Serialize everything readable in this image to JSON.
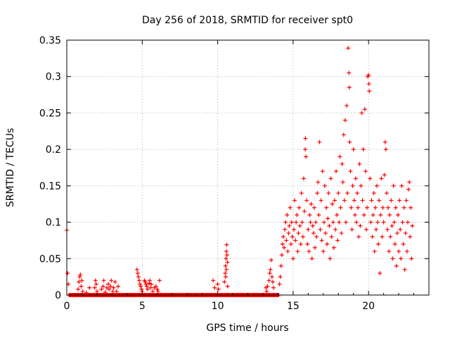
{
  "chart_data": {
    "type": "scatter",
    "title": "Day 256 of 2018, SRMTID for receiver spt0",
    "xlabel": "GPS time / hours",
    "ylabel": "SRMTID / TECUs",
    "xlim": [
      0,
      24
    ],
    "ylim": [
      0,
      0.35
    ],
    "grid": true,
    "legend": "none",
    "colors": {
      "marker": "#ff0000",
      "grid": "#b0b0b0",
      "axis": "#000000"
    },
    "x_ticks": [
      {
        "value": 0,
        "label": "0"
      },
      {
        "value": 5,
        "label": "5"
      },
      {
        "value": 10,
        "label": "10"
      },
      {
        "value": 15,
        "label": "15"
      },
      {
        "value": 20,
        "label": "20"
      }
    ],
    "y_ticks": [
      {
        "value": 0,
        "label": "0"
      },
      {
        "value": 0.05,
        "label": "0.05"
      },
      {
        "value": 0.1,
        "label": "0.1"
      },
      {
        "value": 0.15,
        "label": "0.15"
      },
      {
        "value": 0.2,
        "label": "0.2"
      },
      {
        "value": 0.25,
        "label": "0.25"
      },
      {
        "value": 0.3,
        "label": "0.3"
      },
      {
        "value": 0.35,
        "label": "0.35"
      }
    ],
    "series": [
      {
        "name": "SRMTID",
        "marker": "+",
        "points": [
          [
            0.0,
            0.089
          ],
          [
            0.05,
            0.03
          ],
          [
            0.1,
            0.015
          ],
          [
            0.15,
            0.0
          ],
          [
            0.4,
            0.0
          ],
          [
            0.6,
            0.0
          ],
          [
            0.75,
            0.008
          ],
          [
            0.8,
            0.018
          ],
          [
            0.85,
            0.025
          ],
          [
            0.9,
            0.028
          ],
          [
            0.95,
            0.012
          ],
          [
            1.0,
            0.02
          ],
          [
            1.05,
            0.005
          ],
          [
            1.1,
            0.0
          ],
          [
            1.3,
            0.003
          ],
          [
            1.5,
            0.01
          ],
          [
            1.6,
            0.0
          ],
          [
            1.85,
            0.01
          ],
          [
            1.9,
            0.02
          ],
          [
            1.95,
            0.015
          ],
          [
            2.0,
            0.005
          ],
          [
            2.2,
            0.0
          ],
          [
            2.3,
            0.008
          ],
          [
            2.4,
            0.012
          ],
          [
            2.45,
            0.02
          ],
          [
            2.55,
            0.004
          ],
          [
            2.65,
            0.01
          ],
          [
            2.75,
            0.015
          ],
          [
            2.8,
            0.008
          ],
          [
            2.9,
            0.012
          ],
          [
            2.95,
            0.02
          ],
          [
            3.05,
            0.005
          ],
          [
            3.1,
            0.01
          ],
          [
            3.2,
            0.018
          ],
          [
            3.3,
            0.005
          ],
          [
            3.4,
            0.012
          ],
          [
            3.5,
            0.0
          ],
          [
            3.7,
            0.0
          ],
          [
            4.0,
            0.0
          ],
          [
            4.3,
            0.0
          ],
          [
            4.65,
            0.035
          ],
          [
            4.7,
            0.03
          ],
          [
            4.75,
            0.025
          ],
          [
            4.8,
            0.02
          ],
          [
            4.85,
            0.015
          ],
          [
            4.9,
            0.012
          ],
          [
            4.95,
            0.008
          ],
          [
            5.0,
            0.005
          ],
          [
            5.15,
            0.02
          ],
          [
            5.2,
            0.018
          ],
          [
            5.25,
            0.015
          ],
          [
            5.3,
            0.012
          ],
          [
            5.35,
            0.008
          ],
          [
            5.45,
            0.016
          ],
          [
            5.5,
            0.02
          ],
          [
            5.55,
            0.01
          ],
          [
            5.6,
            0.015
          ],
          [
            5.7,
            0.005
          ],
          [
            5.8,
            0.01
          ],
          [
            5.9,
            0.012
          ],
          [
            6.0,
            0.008
          ],
          [
            6.05,
            0.005
          ],
          [
            6.15,
            0.02
          ],
          [
            6.3,
            0.0
          ],
          [
            6.6,
            0.0
          ],
          [
            7.0,
            0.0
          ],
          [
            7.5,
            0.0
          ],
          [
            8.0,
            0.0
          ],
          [
            8.5,
            0.0
          ],
          [
            9.0,
            0.0
          ],
          [
            9.5,
            0.0
          ],
          [
            9.7,
            0.02
          ],
          [
            9.8,
            0.01
          ],
          [
            9.9,
            0.0
          ],
          [
            10.0,
            0.015
          ],
          [
            10.05,
            0.008
          ],
          [
            10.2,
            0.0
          ],
          [
            10.45,
            0.018
          ],
          [
            10.5,
            0.03
          ],
          [
            10.52,
            0.04
          ],
          [
            10.55,
            0.05
          ],
          [
            10.57,
            0.06
          ],
          [
            10.6,
            0.069
          ],
          [
            10.62,
            0.055
          ],
          [
            10.65,
            0.045
          ],
          [
            10.58,
            0.035
          ],
          [
            10.53,
            0.025
          ],
          [
            10.66,
            0.012
          ],
          [
            11.0,
            0.0
          ],
          [
            11.5,
            0.0
          ],
          [
            12.0,
            0.0
          ],
          [
            12.5,
            0.0
          ],
          [
            13.0,
            0.0
          ],
          [
            13.2,
            0.01
          ],
          [
            13.25,
            0.005
          ],
          [
            13.3,
            0.012
          ],
          [
            13.4,
            0.02
          ],
          [
            13.45,
            0.03
          ],
          [
            13.5,
            0.035
          ],
          [
            13.55,
            0.048
          ],
          [
            13.6,
            0.025
          ],
          [
            13.65,
            0.018
          ],
          [
            13.7,
            0.01
          ],
          [
            13.8,
            0.0
          ],
          [
            14.0,
            0.0
          ],
          [
            14.1,
            0.015
          ],
          [
            14.15,
            0.025
          ],
          [
            14.2,
            0.04
          ],
          [
            14.25,
            0.055
          ],
          [
            14.3,
            0.07
          ],
          [
            14.35,
            0.08
          ],
          [
            14.4,
            0.065
          ],
          [
            14.45,
            0.09
          ],
          [
            14.5,
            0.1
          ],
          [
            14.55,
            0.075
          ],
          [
            14.6,
            0.11
          ],
          [
            14.65,
            0.06
          ],
          [
            14.7,
            0.085
          ],
          [
            14.75,
            0.095
          ],
          [
            14.8,
            0.12
          ],
          [
            14.85,
            0.07
          ],
          [
            14.9,
            0.1
          ],
          [
            14.95,
            0.08
          ],
          [
            15.0,
            0.05
          ],
          [
            15.05,
            0.09
          ],
          [
            15.1,
            0.13
          ],
          [
            15.15,
            0.075
          ],
          [
            15.2,
            0.1
          ],
          [
            15.25,
            0.11
          ],
          [
            15.3,
            0.06
          ],
          [
            15.35,
            0.085
          ],
          [
            15.4,
            0.12
          ],
          [
            15.45,
            0.095
          ],
          [
            15.5,
            0.07
          ],
          [
            15.55,
            0.14
          ],
          [
            15.6,
            0.1
          ],
          [
            15.65,
            0.08
          ],
          [
            15.7,
            0.16
          ],
          [
            15.75,
            0.115
          ],
          [
            15.8,
            0.2
          ],
          [
            15.82,
            0.215
          ],
          [
            15.85,
            0.19
          ],
          [
            15.9,
            0.13
          ],
          [
            15.95,
            0.07
          ],
          [
            16.0,
            0.09
          ],
          [
            16.05,
            0.06
          ],
          [
            16.1,
            0.11
          ],
          [
            16.15,
            0.1
          ],
          [
            16.2,
            0.125
          ],
          [
            16.25,
            0.05
          ],
          [
            16.3,
            0.095
          ],
          [
            16.35,
            0.085
          ],
          [
            16.4,
            0.12
          ],
          [
            16.45,
            0.065
          ],
          [
            16.5,
            0.1
          ],
          [
            16.55,
            0.08
          ],
          [
            16.6,
            0.14
          ],
          [
            16.65,
            0.155
          ],
          [
            16.7,
            0.11
          ],
          [
            16.75,
            0.21
          ],
          [
            16.8,
            0.09
          ],
          [
            16.85,
            0.13
          ],
          [
            16.9,
            0.075
          ],
          [
            16.95,
            0.17
          ],
          [
            17.0,
            0.06
          ],
          [
            17.05,
            0.1
          ],
          [
            17.1,
            0.15
          ],
          [
            17.15,
            0.085
          ],
          [
            17.2,
            0.12
          ],
          [
            17.25,
            0.07
          ],
          [
            17.3,
            0.105
          ],
          [
            17.35,
            0.14
          ],
          [
            17.4,
            0.095
          ],
          [
            17.45,
            0.05
          ],
          [
            17.5,
            0.16
          ],
          [
            17.55,
            0.08
          ],
          [
            17.6,
            0.125
          ],
          [
            17.65,
            0.1
          ],
          [
            17.7,
            0.065
          ],
          [
            17.75,
            0.13
          ],
          [
            17.8,
            0.09
          ],
          [
            17.85,
            0.17
          ],
          [
            17.9,
            0.11
          ],
          [
            17.95,
            0.075
          ],
          [
            18.0,
            0.14
          ],
          [
            18.05,
            0.1
          ],
          [
            18.1,
            0.19
          ],
          [
            18.15,
            0.12
          ],
          [
            18.2,
            0.085
          ],
          [
            18.25,
            0.18
          ],
          [
            18.3,
            0.155
          ],
          [
            18.35,
            0.22
          ],
          [
            18.4,
            0.13
          ],
          [
            18.45,
            0.24
          ],
          [
            18.5,
            0.1
          ],
          [
            18.55,
            0.26
          ],
          [
            18.6,
            0.14
          ],
          [
            18.65,
            0.339
          ],
          [
            18.7,
            0.305
          ],
          [
            18.72,
            0.285
          ],
          [
            18.75,
            0.21
          ],
          [
            18.8,
            0.17
          ],
          [
            18.85,
            0.12
          ],
          [
            18.9,
            0.09
          ],
          [
            18.95,
            0.15
          ],
          [
            19.0,
            0.2
          ],
          [
            19.05,
            0.13
          ],
          [
            19.1,
            0.11
          ],
          [
            19.15,
            0.16
          ],
          [
            19.2,
            0.1
          ],
          [
            19.25,
            0.14
          ],
          [
            19.3,
            0.12
          ],
          [
            19.35,
            0.08
          ],
          [
            19.4,
            0.18
          ],
          [
            19.45,
            0.095
          ],
          [
            19.5,
            0.15
          ],
          [
            19.55,
            0.25
          ],
          [
            19.6,
            0.13
          ],
          [
            19.65,
            0.2
          ],
          [
            19.7,
            0.11
          ],
          [
            19.75,
            0.255
          ],
          [
            19.8,
            0.17
          ],
          [
            19.85,
            0.09
          ],
          [
            19.9,
            0.12
          ],
          [
            19.95,
            0.3
          ],
          [
            20.0,
            0.302
          ],
          [
            20.02,
            0.29
          ],
          [
            20.05,
            0.28
          ],
          [
            20.1,
            0.16
          ],
          [
            20.15,
            0.1
          ],
          [
            20.2,
            0.13
          ],
          [
            20.25,
            0.08
          ],
          [
            20.3,
            0.11
          ],
          [
            20.35,
            0.14
          ],
          [
            20.4,
            0.06
          ],
          [
            20.45,
            0.12
          ],
          [
            20.5,
            0.09
          ],
          [
            20.55,
            0.15
          ],
          [
            20.6,
            0.1
          ],
          [
            20.65,
            0.07
          ],
          [
            20.7,
            0.13
          ],
          [
            20.75,
            0.03
          ],
          [
            20.8,
            0.11
          ],
          [
            20.85,
            0.16
          ],
          [
            20.9,
            0.08
          ],
          [
            20.95,
            0.12
          ],
          [
            21.0,
            0.1
          ],
          [
            21.05,
            0.165
          ],
          [
            21.1,
            0.21
          ],
          [
            21.15,
            0.2
          ],
          [
            21.2,
            0.14
          ],
          [
            21.25,
            0.09
          ],
          [
            21.3,
            0.12
          ],
          [
            21.35,
            0.06
          ],
          [
            21.4,
            0.11
          ],
          [
            21.45,
            0.08
          ],
          [
            21.5,
            0.13
          ],
          [
            21.55,
            0.095
          ],
          [
            21.6,
            0.05
          ],
          [
            21.65,
            0.15
          ],
          [
            21.7,
            0.1
          ],
          [
            21.75,
            0.07
          ],
          [
            21.8,
            0.12
          ],
          [
            21.85,
            0.04
          ],
          [
            21.9,
            0.085
          ],
          [
            21.95,
            0.11
          ],
          [
            22.0,
            0.06
          ],
          [
            22.05,
            0.13
          ],
          [
            22.1,
            0.09
          ],
          [
            22.15,
            0.05
          ],
          [
            22.2,
            0.15
          ],
          [
            22.25,
            0.1
          ],
          [
            22.3,
            0.07
          ],
          [
            22.35,
            0.12
          ],
          [
            22.4,
            0.035
          ],
          [
            22.45,
            0.085
          ],
          [
            22.5,
            0.13
          ],
          [
            22.55,
            0.06
          ],
          [
            22.6,
            0.1
          ],
          [
            22.65,
            0.145
          ],
          [
            22.7,
            0.155
          ],
          [
            22.75,
            0.08
          ],
          [
            22.8,
            0.12
          ],
          [
            22.85,
            0.05
          ],
          [
            22.9,
            0.095
          ]
        ]
      }
    ]
  }
}
